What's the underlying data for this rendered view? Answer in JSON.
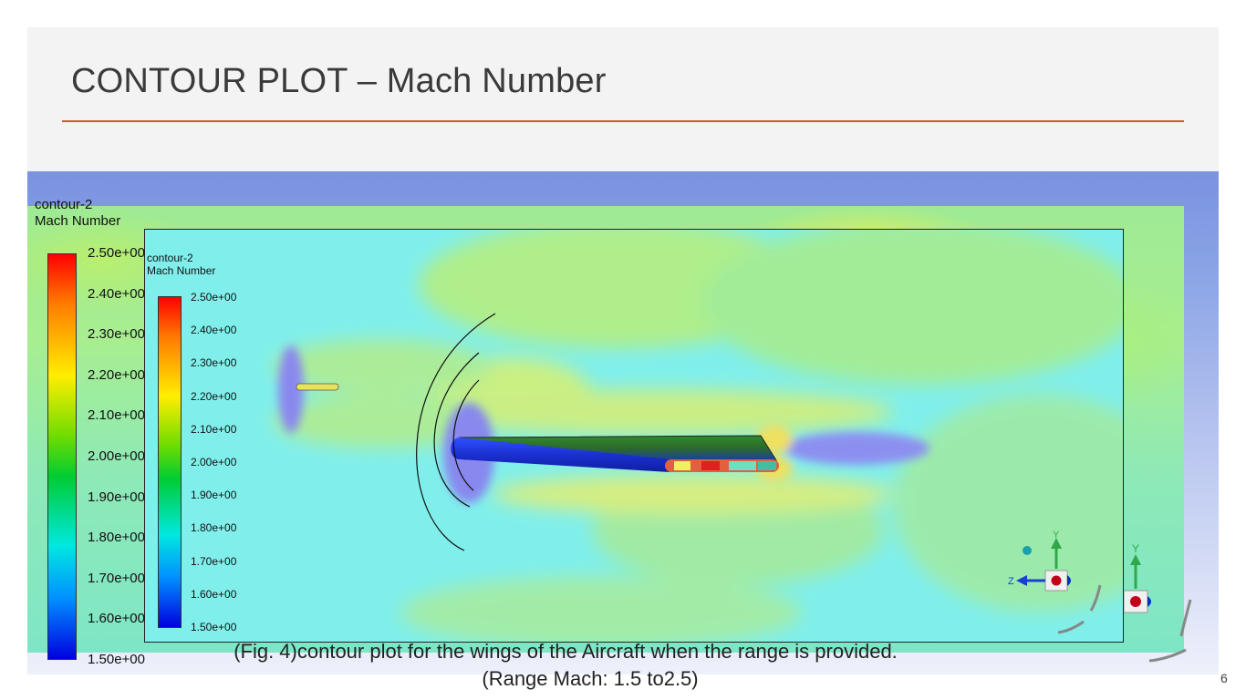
{
  "slide": {
    "title": "CONTOUR PLOT – Mach Number",
    "page_number": "6",
    "caption_line1": "(Fig. 4)contour plot for the wings of the Aircraft when the range is provided.",
    "caption_line2": "(Range Mach: 1.5 to2.5)"
  },
  "outer_plot": {
    "contour_name": "contour-2",
    "variable": "Mach Number",
    "ticks": [
      "2.50e+00",
      "2.40e+00",
      "2.30e+00",
      "2.20e+00",
      "2.10e+00",
      "2.00e+00",
      "1.90e+00",
      "1.80e+00",
      "1.70e+00",
      "1.60e+00",
      "1.50e+00"
    ]
  },
  "inner_plot": {
    "contour_name": "contour-2",
    "variable": "Mach Number",
    "ticks": [
      "2.50e+00",
      "2.40e+00",
      "2.30e+00",
      "2.20e+00",
      "2.10e+00",
      "2.00e+00",
      "1.90e+00",
      "1.80e+00",
      "1.70e+00",
      "1.60e+00",
      "1.50e+00"
    ]
  },
  "axes": {
    "y_label": "Y",
    "z_label": "Z"
  },
  "colors": {
    "title_rule": "#d9532b",
    "colormap": [
      "#ff0000",
      "#ff7a00",
      "#ffee00",
      "#6edc00",
      "#00cc33",
      "#00e8e0",
      "#0090ff",
      "#0000e0"
    ]
  },
  "icons": [
    "axis-triad-icon",
    "rotate-arrow-icon"
  ]
}
